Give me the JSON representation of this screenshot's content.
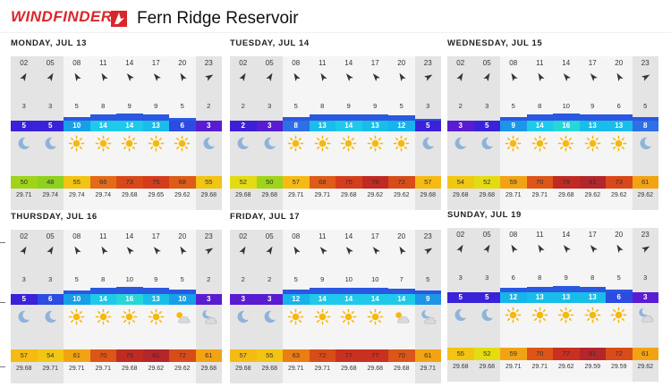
{
  "header": {
    "brand": "WINDFINDER",
    "spot": "Fern Ridge Reservoir"
  },
  "colors": {
    "header_red": "#d9262b",
    "wind": {
      "2": "#3d1fd8",
      "3": "#5a1cd0",
      "5": "#3a22d8",
      "6": "#2c4be0",
      "8": "#2f6fe6",
      "9": "#1c96e6",
      "10": "#16a0e8",
      "12": "#16b4ea",
      "13": "#19bde9",
      "14": "#1ec9ea",
      "16": "#27d6d8"
    },
    "temp": {
      "48": "#8fd11e",
      "50": "#9fd41b",
      "52": "#e3dc12",
      "54": "#f0c814",
      "55": "#f2c413",
      "57": "#f5bb14",
      "59": "#f2a314",
      "61": "#f2a314",
      "63": "#ea7d14",
      "66": "#e36b17",
      "68": "#de5c18",
      "70": "#dc5519",
      "72": "#d84c1a",
      "73": "#d8481b",
      "75": "#d43d1c",
      "77": "#c83020",
      "79": "#c02a22",
      "81": "#b3262a"
    }
  },
  "days": [
    {
      "label": "MONDAY, JUL 13",
      "hours": [
        "02",
        "05",
        "08",
        "11",
        "14",
        "17",
        "20",
        "23"
      ],
      "dirs": [
        30,
        30,
        330,
        330,
        320,
        320,
        330,
        60
      ],
      "speed": [
        "3",
        "3",
        "5",
        "8",
        "9",
        "9",
        "5",
        "2"
      ],
      "wind": [
        "5",
        "5",
        "10",
        "14",
        "14",
        "13",
        "6",
        "3"
      ],
      "gustlevel": [
        0,
        0,
        0.4,
        0.7,
        0.75,
        0.7,
        0.3,
        0
      ],
      "weather": [
        "moon-icon",
        "moon-icon",
        "sun-icon",
        "sun-icon",
        "sun-icon",
        "sun-icon",
        "sun-icon",
        "moon-icon"
      ],
      "temp": [
        "50",
        "48",
        "55",
        "66",
        "73",
        "75",
        "68",
        "55"
      ],
      "pressure": [
        "29.71",
        "29.74",
        "29.74",
        "29.74",
        "29.68",
        "29.65",
        "29.62",
        "29.68"
      ]
    },
    {
      "label": "TUESDAY, JUL 14",
      "hours": [
        "02",
        "05",
        "08",
        "11",
        "14",
        "17",
        "20",
        "23"
      ],
      "dirs": [
        30,
        30,
        330,
        330,
        320,
        320,
        330,
        60
      ],
      "speed": [
        "2",
        "3",
        "5",
        "8",
        "9",
        "9",
        "5",
        "3"
      ],
      "wind": [
        "2",
        "3",
        "8",
        "13",
        "14",
        "13",
        "12",
        "5"
      ],
      "gustlevel": [
        0,
        0,
        0.35,
        0.65,
        0.7,
        0.65,
        0.6,
        0.2
      ],
      "weather": [
        "moon-icon",
        "moon-icon",
        "sun-icon",
        "sun-icon",
        "sun-icon",
        "sun-icon",
        "sun-icon",
        "moon-icon"
      ],
      "temp": [
        "52",
        "50",
        "57",
        "68",
        "75",
        "79",
        "72",
        "57"
      ],
      "pressure": [
        "29.68",
        "29.68",
        "29.71",
        "29.71",
        "29.68",
        "29.62",
        "29.62",
        "29.68"
      ]
    },
    {
      "label": "WEDNESDAY, JUL 15",
      "hours": [
        "02",
        "05",
        "08",
        "11",
        "14",
        "17",
        "20",
        "23"
      ],
      "dirs": [
        30,
        30,
        330,
        330,
        320,
        320,
        330,
        60
      ],
      "speed": [
        "2",
        "3",
        "5",
        "8",
        "10",
        "9",
        "6",
        "5"
      ],
      "wind": [
        "3",
        "5",
        "9",
        "14",
        "16",
        "13",
        "13",
        "8"
      ],
      "gustlevel": [
        0,
        0,
        0.35,
        0.65,
        0.8,
        0.7,
        0.65,
        0.35
      ],
      "weather": [
        "moon-icon",
        "moon-icon",
        "sun-icon",
        "sun-icon",
        "sun-icon",
        "sun-icon",
        "sun-icon",
        "moon-icon"
      ],
      "temp": [
        "54",
        "52",
        "59",
        "70",
        "79",
        "81",
        "73",
        "61"
      ],
      "pressure": [
        "29.68",
        "29.68",
        "29.71",
        "29.71",
        "29.68",
        "29.62",
        "29.62",
        "29.62"
      ]
    },
    {
      "label": "THURSDAY, JUL 16",
      "hours": [
        "02",
        "05",
        "08",
        "11",
        "14",
        "17",
        "20",
        "23"
      ],
      "dirs": [
        30,
        30,
        330,
        330,
        320,
        320,
        330,
        60
      ],
      "speed": [
        "3",
        "3",
        "5",
        "8",
        "10",
        "9",
        "5",
        "2"
      ],
      "wind": [
        "5",
        "6",
        "10",
        "14",
        "16",
        "13",
        "10",
        "3"
      ],
      "gustlevel": [
        0,
        0,
        0.4,
        0.65,
        0.8,
        0.7,
        0.45,
        0
      ],
      "weather": [
        "moon-icon",
        "moon-icon",
        "sun-icon",
        "sun-icon",
        "sun-icon",
        "sun-icon",
        "partly-cloudy-icon",
        "partly-cloudy-night-icon"
      ],
      "temp": [
        "57",
        "54",
        "61",
        "70",
        "79",
        "81",
        "72",
        "61"
      ],
      "pressure": [
        "29.68",
        "29.71",
        "29.71",
        "29.71",
        "29.68",
        "29.62",
        "29.62",
        "29.68"
      ]
    },
    {
      "label": "FRIDAY, JUL 17",
      "hours": [
        "02",
        "05",
        "08",
        "11",
        "14",
        "17",
        "20",
        "23"
      ],
      "dirs": [
        30,
        30,
        330,
        320,
        320,
        320,
        330,
        60
      ],
      "speed": [
        "2",
        "2",
        "5",
        "9",
        "10",
        "10",
        "7",
        "5"
      ],
      "wind": [
        "3",
        "3",
        "12",
        "14",
        "14",
        "14",
        "14",
        "9"
      ],
      "gustlevel": [
        0,
        0,
        0.5,
        0.7,
        0.7,
        0.7,
        0.6,
        0.4
      ],
      "weather": [
        "moon-icon",
        "moon-icon",
        "sun-icon",
        "sun-icon",
        "sun-icon",
        "sun-icon",
        "partly-cloudy-icon",
        "partly-cloudy-night-icon"
      ],
      "temp": [
        "57",
        "55",
        "63",
        "72",
        "77",
        "77",
        "70",
        "61"
      ],
      "pressure": [
        "29.68",
        "29.68",
        "29.71",
        "29.71",
        "29.68",
        "29.68",
        "29.68",
        "29.71"
      ]
    },
    {
      "label": "SUNDAY, JUL 19",
      "hours": [
        "02",
        "05",
        "08",
        "11",
        "14",
        "17",
        "20",
        "23"
      ],
      "dirs": [
        30,
        30,
        330,
        330,
        320,
        320,
        330,
        60
      ],
      "speed": [
        "3",
        "3",
        "6",
        "8",
        "9",
        "8",
        "5",
        "3"
      ],
      "wind": [
        "5",
        "5",
        "12",
        "13",
        "13",
        "13",
        "6",
        "3"
      ],
      "gustlevel": [
        0,
        0,
        0.45,
        0.6,
        0.65,
        0.6,
        0.3,
        0
      ],
      "weather": [
        "moon-icon",
        "moon-icon",
        "sun-icon",
        "sun-icon",
        "sun-icon",
        "sun-icon",
        "sun-icon",
        "partly-cloudy-night-icon"
      ],
      "temp": [
        "55",
        "52",
        "59",
        "70",
        "77",
        "81",
        "72",
        "61"
      ],
      "pressure": [
        "29.68",
        "29.68",
        "29.71",
        "29.71",
        "29.62",
        "29.59",
        "29.59",
        "29.62"
      ]
    }
  ]
}
